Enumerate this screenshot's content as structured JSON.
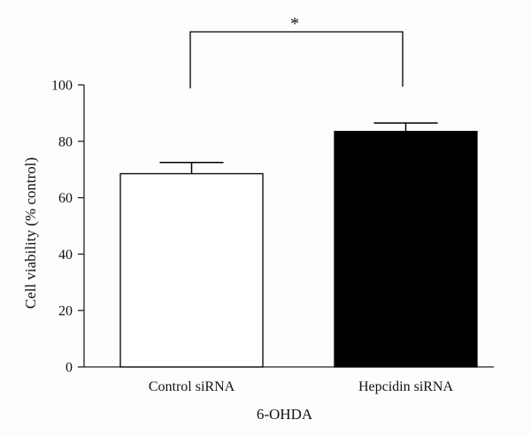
{
  "chart_data": {
    "type": "bar",
    "categories": [
      "Control siRNA",
      "Hepcidin siRNA"
    ],
    "values": [
      68.5,
      83.5
    ],
    "error": [
      4,
      3
    ],
    "bar_fill": [
      "#ffffff",
      "#000000"
    ],
    "xlabel": "6-OHDA",
    "ylabel": "Cell viability (% control)",
    "ylim": [
      0,
      100
    ],
    "yticks": [
      0,
      20,
      40,
      60,
      80,
      100
    ],
    "grid": false,
    "annotation": {
      "text": "*",
      "between": [
        0,
        1
      ],
      "type": "significance-bracket"
    }
  }
}
